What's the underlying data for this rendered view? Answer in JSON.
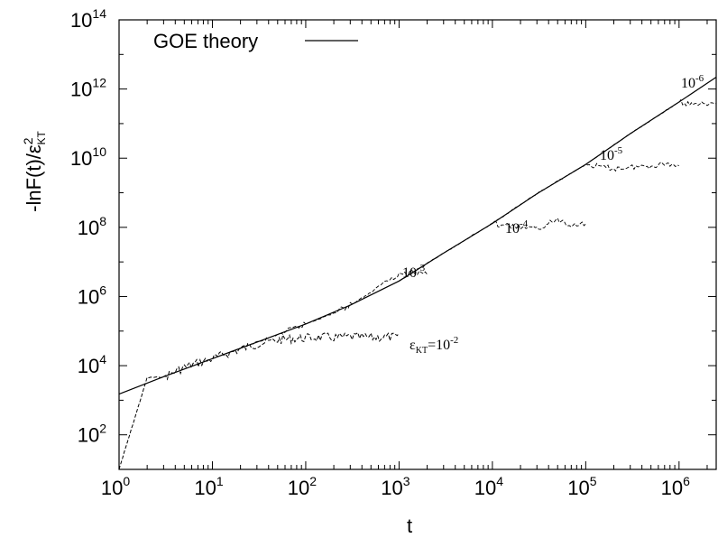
{
  "chart_data": {
    "type": "line",
    "xscale": "log",
    "yscale": "log",
    "xlim": [
      1,
      2500000
    ],
    "ylim": [
      10,
      100000000000000
    ],
    "xlabel": "t",
    "ylabel": "-lnF(t)/ε²KT",
    "ylabel_parts": {
      "main": "-lnF(t)/ε",
      "sup": "2",
      "sub": "KT"
    },
    "x_ticks": [
      {
        "value": 1,
        "base": "10",
        "exp": "0"
      },
      {
        "value": 10,
        "base": "10",
        "exp": "1"
      },
      {
        "value": 100,
        "base": "10",
        "exp": "2"
      },
      {
        "value": 1000,
        "base": "10",
        "exp": "3"
      },
      {
        "value": 10000,
        "base": "10",
        "exp": "4"
      },
      {
        "value": 100000,
        "base": "10",
        "exp": "5"
      },
      {
        "value": 1000000,
        "base": "10",
        "exp": "6"
      }
    ],
    "y_ticks": [
      {
        "value": 100,
        "base": "10",
        "exp": "2"
      },
      {
        "value": 10000,
        "base": "10",
        "exp": "4"
      },
      {
        "value": 1000000,
        "base": "10",
        "exp": "6"
      },
      {
        "value": 100000000,
        "base": "10",
        "exp": "8"
      },
      {
        "value": 10000000000,
        "base": "10",
        "exp": "10"
      },
      {
        "value": 1000000000000,
        "base": "10",
        "exp": "12"
      },
      {
        "value": 100000000000000,
        "base": "10",
        "exp": "14"
      }
    ],
    "legend": {
      "position": "top-left",
      "entries": [
        "GOE theory"
      ]
    },
    "grid": false,
    "theory": {
      "name": "GOE theory",
      "x": [
        1,
        3,
        10,
        30,
        100,
        300,
        1000,
        3000,
        10000,
        30000,
        100000,
        300000,
        1000000,
        2500000
      ],
      "y": [
        1500,
        4800,
        16000,
        48000,
        160000,
        560000,
        2800000,
        18000000,
        130000000,
        940000000,
        6600000000,
        51000000000,
        420000000000,
        2200000000000
      ]
    },
    "series": [
      {
        "epsilon": "10^-2",
        "x": [
          1,
          2,
          3,
          5,
          10,
          20,
          30,
          50,
          70,
          100,
          150,
          200,
          300,
          500,
          700,
          1000
        ],
        "y": [
          10,
          4500,
          4700,
          9000,
          16000,
          30000,
          42000,
          55000,
          60000,
          63000,
          66000,
          64000,
          68000,
          65000,
          67000,
          66000
        ]
      },
      {
        "epsilon": "10^-3",
        "x": [
          20,
          30,
          50,
          100,
          200,
          300,
          500,
          700,
          1000,
          1500,
          2000
        ],
        "y": [
          32000,
          48000,
          78000,
          160000,
          330000,
          570000,
          1300000,
          2700000,
          4500000,
          5000000,
          4800000
        ]
      },
      {
        "epsilon": "10^-4",
        "x": [
          1000,
          3000,
          10000,
          15000,
          20000,
          30000,
          50000,
          70000,
          100000
        ],
        "y": [
          2800000,
          18000000,
          130000000,
          110000000,
          100000000,
          90000000,
          170000000,
          120000000,
          130000000
        ]
      },
      {
        "epsilon": "10^-5",
        "x": [
          10000,
          30000,
          100000,
          150000,
          200000,
          300000,
          500000,
          700000,
          1000000
        ],
        "y": [
          130000000,
          940000000,
          6600000000,
          5500000000,
          5000000000,
          5500000000,
          6000000000,
          7000000000,
          6000000000
        ]
      },
      {
        "epsilon": "10^-6",
        "x": [
          100000,
          300000,
          1000000,
          1300000,
          1600000,
          2000000,
          2500000
        ],
        "y": [
          6600000000,
          51000000000,
          420000000000,
          350000000000,
          380000000000,
          330000000000,
          350000000000
        ]
      }
    ],
    "annotations": [
      {
        "kind": "eps",
        "base": "ε",
        "sub": "KT",
        "eq": "=10",
        "sup": "-2"
      },
      {
        "kind": "pow",
        "base": "10",
        "sup": "-3"
      },
      {
        "kind": "pow",
        "base": "10",
        "sup": "-4"
      },
      {
        "kind": "pow",
        "base": "10",
        "sup": "-5"
      },
      {
        "kind": "pow",
        "base": "10",
        "sup": "-6"
      }
    ]
  }
}
